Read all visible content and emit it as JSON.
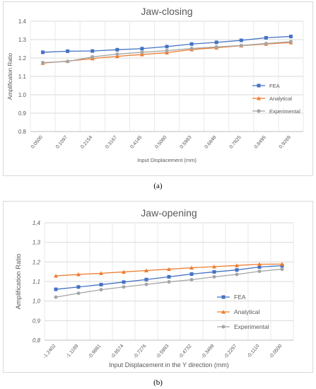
{
  "panels": [
    {
      "label": "(a)"
    },
    {
      "label": "(b)"
    }
  ],
  "chart_data": [
    {
      "type": "line",
      "title": "Jaw-closing",
      "xlabel": "Input Displacement (mm)",
      "ylabel": "Amplification Ratio",
      "categories": [
        "0.0500",
        "0.1097",
        "0.2154",
        "0.3167",
        "0.4145",
        "0.5080",
        "0.5983",
        "0.6848",
        "0.7825",
        "0.8495",
        "0.9269"
      ],
      "ylim": [
        0.8,
        1.4
      ],
      "yticks": [
        "0.8",
        "0.9",
        "1.0",
        "1.1",
        "1.2",
        "1.3",
        "1.4"
      ],
      "grid": true,
      "legend_position": "right",
      "series": [
        {
          "name": "FEA",
          "color": "#4472c4",
          "marker": "square",
          "values": [
            1.231,
            1.237,
            1.238,
            1.245,
            1.251,
            1.262,
            1.276,
            1.285,
            1.296,
            1.31,
            1.317
          ]
        },
        {
          "name": "Analytical",
          "color": "#ed7d31",
          "marker": "triangle",
          "values": [
            1.172,
            1.183,
            1.197,
            1.209,
            1.219,
            1.229,
            1.246,
            1.256,
            1.267,
            1.276,
            1.284
          ]
        },
        {
          "name": "Experimental",
          "color": "#a5a5a5",
          "marker": "circle",
          "values": [
            1.175,
            1.181,
            1.206,
            1.221,
            1.231,
            1.24,
            1.252,
            1.26,
            1.268,
            1.279,
            1.289
          ]
        }
      ]
    },
    {
      "type": "line",
      "title": "Jaw-opening",
      "xlabel": "Input Displacement in the Y direction (mm)",
      "ylabel": "Amplification Ratio",
      "categories": [
        "-1.2402",
        "-1.1189",
        "-0.9881",
        "-0.8574",
        "-0.7276",
        "-0.5993",
        "-0.4732",
        "-0.3499",
        "-0.2297",
        "-0.1110",
        "-0.0500"
      ],
      "ylim": [
        0.8,
        1.4
      ],
      "yticks": [
        "0,8",
        "0,9",
        "1,0",
        "1,1",
        "1,2",
        "1,3",
        "1,4"
      ],
      "grid": true,
      "legend_position": "right",
      "series": [
        {
          "name": "FEA",
          "color": "#4472c4",
          "marker": "square",
          "values": [
            1.06,
            1.072,
            1.084,
            1.097,
            1.11,
            1.124,
            1.138,
            1.149,
            1.159,
            1.174,
            1.181
          ]
        },
        {
          "name": "Analytical",
          "color": "#ed7d31",
          "marker": "triangle",
          "values": [
            1.129,
            1.136,
            1.142,
            1.149,
            1.156,
            1.163,
            1.17,
            1.176,
            1.182,
            1.188,
            1.189
          ]
        },
        {
          "name": "Experimental",
          "color": "#a5a5a5",
          "marker": "circle",
          "values": [
            1.02,
            1.04,
            1.058,
            1.072,
            1.085,
            1.098,
            1.109,
            1.124,
            1.136,
            1.152,
            1.163
          ]
        }
      ]
    }
  ]
}
